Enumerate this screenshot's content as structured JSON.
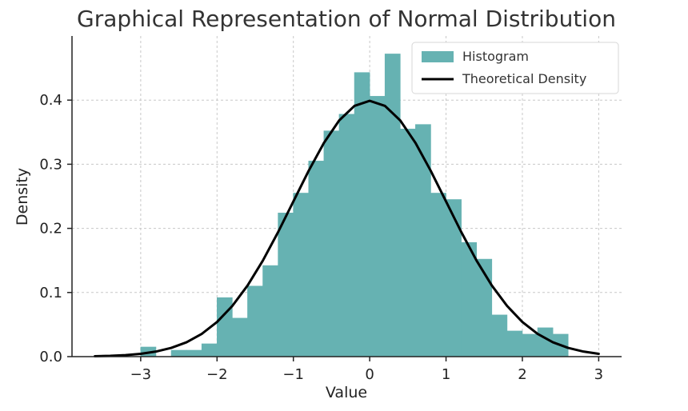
{
  "chart_data": {
    "type": "histogram-line",
    "title": "Graphical Representation of Normal Distribution",
    "xlabel": "Value",
    "ylabel": "Density",
    "xlim": [
      -3.9,
      3.3
    ],
    "ylim": [
      0.0,
      0.5
    ],
    "x_ticks": [
      -3,
      -2,
      -1,
      0,
      1,
      2,
      3
    ],
    "x_tick_labels": [
      "−3",
      "−2",
      "−1",
      "0",
      "1",
      "2",
      "3"
    ],
    "y_ticks": [
      0.0,
      0.1,
      0.2,
      0.3,
      0.4
    ],
    "y_tick_labels": [
      "0.0",
      "0.1",
      "0.2",
      "0.3",
      "0.4"
    ],
    "grid": true,
    "legend": {
      "position": "top-right",
      "items": [
        {
          "label": "Histogram",
          "kind": "patch",
          "color": "#66b2b2"
        },
        {
          "label": "Theoretical Density",
          "kind": "line",
          "color": "#000000"
        }
      ]
    },
    "histogram": {
      "name": "Histogram",
      "color": "#66b2b2",
      "bin_width": 0.2,
      "bins": [
        {
          "x0": -3.0,
          "x1": -2.8,
          "density": 0.015
        },
        {
          "x0": -2.8,
          "x1": -2.6,
          "density": 0.0
        },
        {
          "x0": -2.6,
          "x1": -2.4,
          "density": 0.01
        },
        {
          "x0": -2.4,
          "x1": -2.2,
          "density": 0.01
        },
        {
          "x0": -2.2,
          "x1": -2.0,
          "density": 0.02
        },
        {
          "x0": -2.0,
          "x1": -1.8,
          "density": 0.092
        },
        {
          "x0": -1.8,
          "x1": -1.6,
          "density": 0.06
        },
        {
          "x0": -1.6,
          "x1": -1.4,
          "density": 0.11
        },
        {
          "x0": -1.4,
          "x1": -1.2,
          "density": 0.142
        },
        {
          "x0": -1.2,
          "x1": -1.0,
          "density": 0.224
        },
        {
          "x0": -1.0,
          "x1": -0.8,
          "density": 0.255
        },
        {
          "x0": -0.8,
          "x1": -0.6,
          "density": 0.305
        },
        {
          "x0": -0.6,
          "x1": -0.4,
          "density": 0.352
        },
        {
          "x0": -0.4,
          "x1": -0.2,
          "density": 0.378
        },
        {
          "x0": -0.2,
          "x1": 0.0,
          "density": 0.443
        },
        {
          "x0": 0.0,
          "x1": 0.2,
          "density": 0.406
        },
        {
          "x0": 0.2,
          "x1": 0.4,
          "density": 0.472
        },
        {
          "x0": 0.4,
          "x1": 0.6,
          "density": 0.355
        },
        {
          "x0": 0.6,
          "x1": 0.8,
          "density": 0.362
        },
        {
          "x0": 0.8,
          "x1": 1.0,
          "density": 0.255
        },
        {
          "x0": 1.0,
          "x1": 1.2,
          "density": 0.245
        },
        {
          "x0": 1.2,
          "x1": 1.4,
          "density": 0.178
        },
        {
          "x0": 1.4,
          "x1": 1.6,
          "density": 0.152
        },
        {
          "x0": 1.6,
          "x1": 1.8,
          "density": 0.065
        },
        {
          "x0": 1.8,
          "x1": 2.0,
          "density": 0.04
        },
        {
          "x0": 2.0,
          "x1": 2.2,
          "density": 0.035
        },
        {
          "x0": 2.2,
          "x1": 2.4,
          "density": 0.045
        },
        {
          "x0": 2.4,
          "x1": 2.6,
          "density": 0.035
        },
        {
          "x0": 2.6,
          "x1": 2.8,
          "density": 0.0
        }
      ]
    },
    "theoretical_density": {
      "name": "Theoretical Density",
      "color": "#000000",
      "x": [
        -3.6,
        -3.4,
        -3.2,
        -3.0,
        -2.8,
        -2.6,
        -2.4,
        -2.2,
        -2.0,
        -1.8,
        -1.6,
        -1.4,
        -1.2,
        -1.0,
        -0.8,
        -0.6,
        -0.4,
        -0.2,
        0.0,
        0.2,
        0.4,
        0.6,
        0.8,
        1.0,
        1.2,
        1.4,
        1.6,
        1.8,
        2.0,
        2.2,
        2.4,
        2.6,
        2.8,
        3.0
      ],
      "y": [
        0.0006,
        0.0012,
        0.0024,
        0.0044,
        0.0079,
        0.0136,
        0.0224,
        0.0355,
        0.054,
        0.079,
        0.1109,
        0.1497,
        0.1942,
        0.242,
        0.2897,
        0.3332,
        0.3683,
        0.391,
        0.3989,
        0.391,
        0.3683,
        0.3332,
        0.2897,
        0.242,
        0.1942,
        0.1497,
        0.1109,
        0.079,
        0.054,
        0.0355,
        0.0224,
        0.0136,
        0.0079,
        0.0044
      ]
    }
  }
}
